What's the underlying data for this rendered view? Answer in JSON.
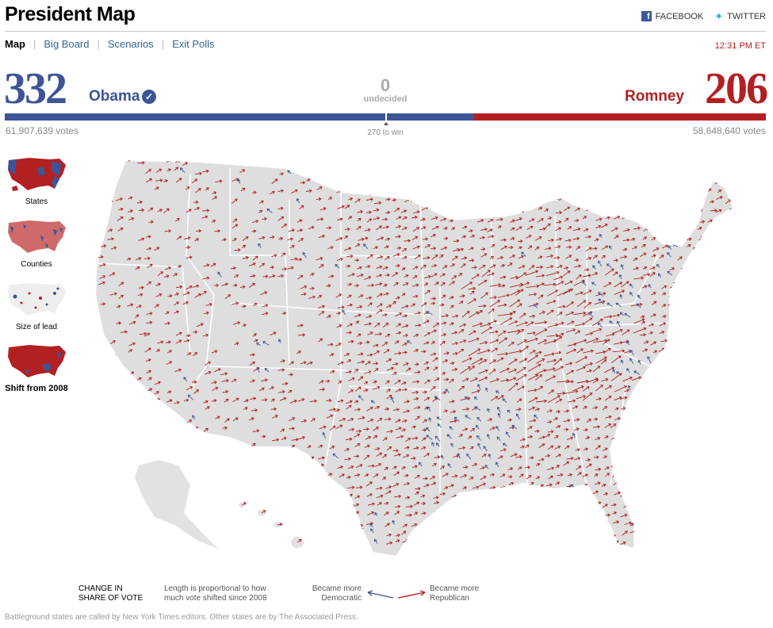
{
  "header": {
    "title": "President Map",
    "facebook_label": "FACEBOOK",
    "twitter_label": "TWITTER"
  },
  "nav": {
    "items": [
      {
        "label": "Map",
        "active": true
      },
      {
        "label": "Big Board",
        "active": false
      },
      {
        "label": "Scenarios",
        "active": false
      },
      {
        "label": "Exit Polls",
        "active": false
      }
    ],
    "time": "12:31 PM ET"
  },
  "results": {
    "obama": {
      "electoral": "332",
      "name": "Obama",
      "votes": "61,907,639 votes",
      "called": true
    },
    "romney": {
      "electoral": "206",
      "name": "Romney",
      "votes": "58,648,640 votes"
    },
    "undecided": {
      "count": "0",
      "label": "undecided"
    },
    "to_win": "270 to win",
    "obama_share": 0.6171,
    "colors": {
      "dem": "#3d5596",
      "rep": "#b32022"
    }
  },
  "views": [
    {
      "label": "States",
      "icon": "states-thumbnail"
    },
    {
      "label": "Counties",
      "icon": "counties-thumbnail"
    },
    {
      "label": "Size of lead",
      "icon": "size-of-lead-thumbnail"
    },
    {
      "label": "Shift from 2008",
      "icon": "shift-thumbnail",
      "active": true
    }
  ],
  "legend": {
    "title_line1": "CHANGE IN",
    "title_line2": "SHARE OF VOTE",
    "desc_line1": "Length is proportional to how",
    "desc_line2": "much vote shifted since 2008",
    "dem_line1": "Became more",
    "dem_line2": "Democratic",
    "rep_line1": "Became more",
    "rep_line2": "Republican"
  },
  "footnote": "Battleground states are called by New York Times editors. Other states are by The Associated Press."
}
